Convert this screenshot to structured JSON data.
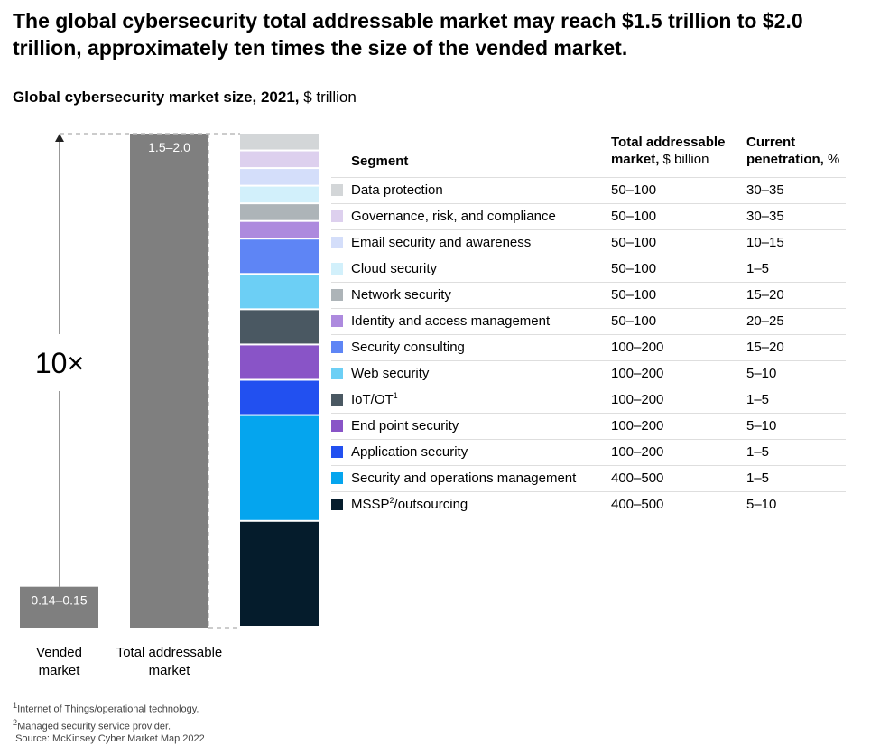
{
  "headline": "The global cybersecurity total addressable market may reach $1.5 trillion to $2.0 trillion, approximately ten times the size of the vended market.",
  "subtitle": {
    "main": "Global cybersecurity market size, 2021,",
    "unit": "$ trillion"
  },
  "chart_data": {
    "type": "bar",
    "title": "Global cybersecurity market size, 2021, $ trillion",
    "categories": [
      "Vended market",
      "Total addressable market"
    ],
    "category_labels": [
      [
        "Vended",
        "market"
      ],
      [
        "Total addressable",
        "market"
      ]
    ],
    "value_labels": [
      "0.14–0.15",
      "1.5–2.0"
    ],
    "values": [
      0.145,
      1.75
    ],
    "ylim": [
      0,
      1.75
    ],
    "multiplier_label": "10×",
    "table": {
      "headers": {
        "segment": "Segment",
        "tam_bold": "Total addressable",
        "tam_rest_bold": "market,",
        "tam_unit": "$ billion",
        "pen_bold": "Current",
        "pen_rest_bold": "penetration,",
        "pen_unit": "%"
      },
      "segments": [
        {
          "name": "Data protection",
          "tam": "50–100",
          "penetration": "30–35",
          "color": "#d3d6d8",
          "mid": 75
        },
        {
          "name": "Governance, risk, and compliance",
          "tam": "50–100",
          "penetration": "30–35",
          "color": "#ddd0ee",
          "mid": 75
        },
        {
          "name": "Email security and awareness",
          "tam": "50–100",
          "penetration": "10–15",
          "color": "#d4defa",
          "mid": 75
        },
        {
          "name": "Cloud security",
          "tam": "50–100",
          "penetration": "1–5",
          "color": "#d2f0fb",
          "mid": 75
        },
        {
          "name": "Network security",
          "tam": "50–100",
          "penetration": "15–20",
          "color": "#adb4b8",
          "mid": 75
        },
        {
          "name": "Identity and access management",
          "tam": "50–100",
          "penetration": "20–25",
          "color": "#ad8ade",
          "mid": 75
        },
        {
          "name": "Security consulting",
          "tam": "100–200",
          "penetration": "15–20",
          "color": "#5e85f5",
          "mid": 150
        },
        {
          "name": "Web security",
          "tam": "100–200",
          "penetration": "5–10",
          "color": "#6ccff5",
          "mid": 150
        },
        {
          "name": "IoT/OT",
          "sup": "1",
          "tam": "100–200",
          "penetration": "1–5",
          "color": "#4a5862",
          "mid": 150
        },
        {
          "name": "End point security",
          "tam": "100–200",
          "penetration": "5–10",
          "color": "#8954c7",
          "mid": 150
        },
        {
          "name": "Application security",
          "tam": "100–200",
          "penetration": "1–5",
          "color": "#2250f0",
          "mid": 150
        },
        {
          "name": "Security and operations management",
          "tam": "400–500",
          "penetration": "1–5",
          "color": "#05a5ee",
          "mid": 450
        },
        {
          "name": "MSSP",
          "sup": "2",
          "name_rest": "/outsourcing",
          "tam": "400–500",
          "penetration": "5–10",
          "color": "#051c2c",
          "mid": 450
        }
      ]
    }
  },
  "footnotes": {
    "f1": "Internet of Things/operational technology.",
    "f2": "Managed security service provider.",
    "source": "Source: McKinsey Cyber Market Map 2022"
  }
}
